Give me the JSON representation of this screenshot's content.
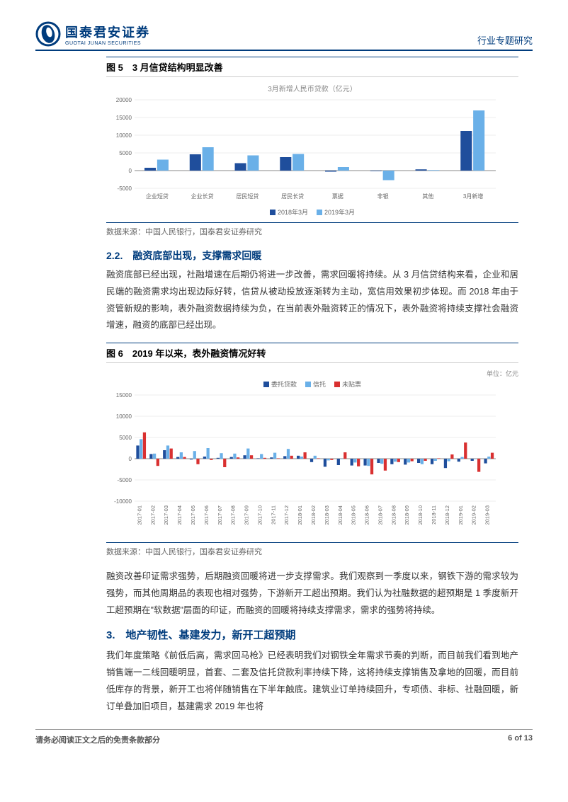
{
  "header": {
    "logo_cn": "国泰君安证券",
    "logo_en": "GUOTAI JUNAN SECURITIES",
    "right": "行业专题研究"
  },
  "fig5": {
    "title": "图 5　3 月信贷结构明显改善",
    "subtitle": "3月新增人民币贷款（亿元）",
    "type": "bar",
    "categories": [
      "企业短贷",
      "企业长贷",
      "居民短贷",
      "居民长贷",
      "票据",
      "非银",
      "其他",
      "3月新增"
    ],
    "series": [
      {
        "name": "2018年3月",
        "color": "#1f4e9c",
        "values": [
          800,
          4600,
          2100,
          3800,
          -300,
          -150,
          350,
          11200
        ]
      },
      {
        "name": "2019年3月",
        "color": "#6ab0e8",
        "values": [
          3100,
          6600,
          4300,
          4700,
          1000,
          -2700,
          150,
          17000
        ]
      }
    ],
    "ymin": -5000,
    "ymax": 20000,
    "ystep": 5000,
    "grid_color": "#dddddd",
    "axis_color": "#888888",
    "tick_fontsize": 8,
    "category_fontsize": 8,
    "source": "数据来源：中国人民银行，国泰君安证券研究"
  },
  "section22": {
    "heading": "2.2.　融资底部出现，支撑需求回暖",
    "para": "融资底部已经出现，社融增速在后期仍将进一步改善，需求回暖将持续。从 3 月信贷结构来看，企业和居民端的融资需求均出现边际好转，信贷从被动投放逐渐转为主动，宽信用效果初步体现。而 2018 年由于资管新规的影响，表外融资数据持续为负，在当前表外融资转正的情况下，表外融资将持续支撑社会融资增速，融资的底部已经出现。"
  },
  "fig6": {
    "title": "图 6　2019 年以来，表外融资情况好转",
    "unit": "单位：亿元",
    "type": "bar",
    "categories": [
      "2017-01",
      "2017-02",
      "2017-03",
      "2017-04",
      "2017-05",
      "2017-06",
      "2017-07",
      "2017-08",
      "2017-09",
      "2017-10",
      "2017-11",
      "2017-12",
      "2018-01",
      "2018-02",
      "2018-03",
      "2018-04",
      "2018-05",
      "2018-06",
      "2018-07",
      "2018-08",
      "2018-09",
      "2018-10",
      "2018-11",
      "2018-12",
      "2019-01",
      "2019-02",
      "2019-03"
    ],
    "series": [
      {
        "name": "委托贷款",
        "color": "#1f4e9c",
        "values": [
          3100,
          1100,
          2000,
          400,
          -200,
          500,
          200,
          400,
          800,
          100,
          300,
          600,
          700,
          -800,
          -1900,
          -1500,
          -1600,
          -1600,
          -1000,
          -1300,
          -1400,
          -1000,
          -1300,
          -2200,
          -700,
          -500,
          -1100
        ]
      },
      {
        "name": "信托",
        "color": "#6ab0e8",
        "values": [
          4600,
          1200,
          3100,
          1500,
          1800,
          2500,
          1300,
          1200,
          2400,
          1100,
          1400,
          2300,
          500,
          700,
          -400,
          -100,
          -900,
          -1700,
          -1200,
          -700,
          -900,
          -1300,
          -500,
          -600,
          400,
          -100,
          500
        ]
      },
      {
        "name": "未贴票",
        "color": "#d93030",
        "values": [
          6200,
          -1700,
          2400,
          400,
          -1300,
          -300,
          -2000,
          300,
          800,
          200,
          100,
          700,
          1500,
          100,
          -300,
          1500,
          -1800,
          -3700,
          -2800,
          -800,
          -600,
          -500,
          100,
          1000,
          3800,
          -3100,
          1400
        ]
      }
    ],
    "ymin": -10000,
    "ymax": 15000,
    "ystep": 5000,
    "grid_color": "#dddddd",
    "axis_color": "#888888",
    "source": "数据来源：中国人民银行，国泰君安证券研究"
  },
  "para2": "融资改善印证需求强势，后期融资回暖将进一步支撑需求。我们观察到一季度以来，钢铁下游的需求较为强势，而其他周期品的表现也相对强势，下游新开工超出预期。我们认为社融数据的超预期是 1 季度新开工超预期在\"软数据\"层面的印证，而融资的回暖将持续支撑需求，需求的强势将持续。",
  "section3": {
    "heading": "3.　地产韧性、基建发力，新开工超预期",
    "para": "我们年度策略《前低后高，需求回马枪》已经表明我们对钢铁全年需求节奏的判断，而目前我们看到地产销售端一二线回暖明显，首套、二套及信托贷款利率持续下降，这将持续支撑销售及拿地的回暖，而目前低库存的背景，新开工也将伴随销售在下半年触底。建筑业订单持续回升，专项债、非标、社融回暖，新订单叠加旧项目，基建需求 2019 年也将"
  },
  "footer": {
    "left": "请务必阅读正文之后的免责条款部分",
    "right": "6 of 13"
  }
}
